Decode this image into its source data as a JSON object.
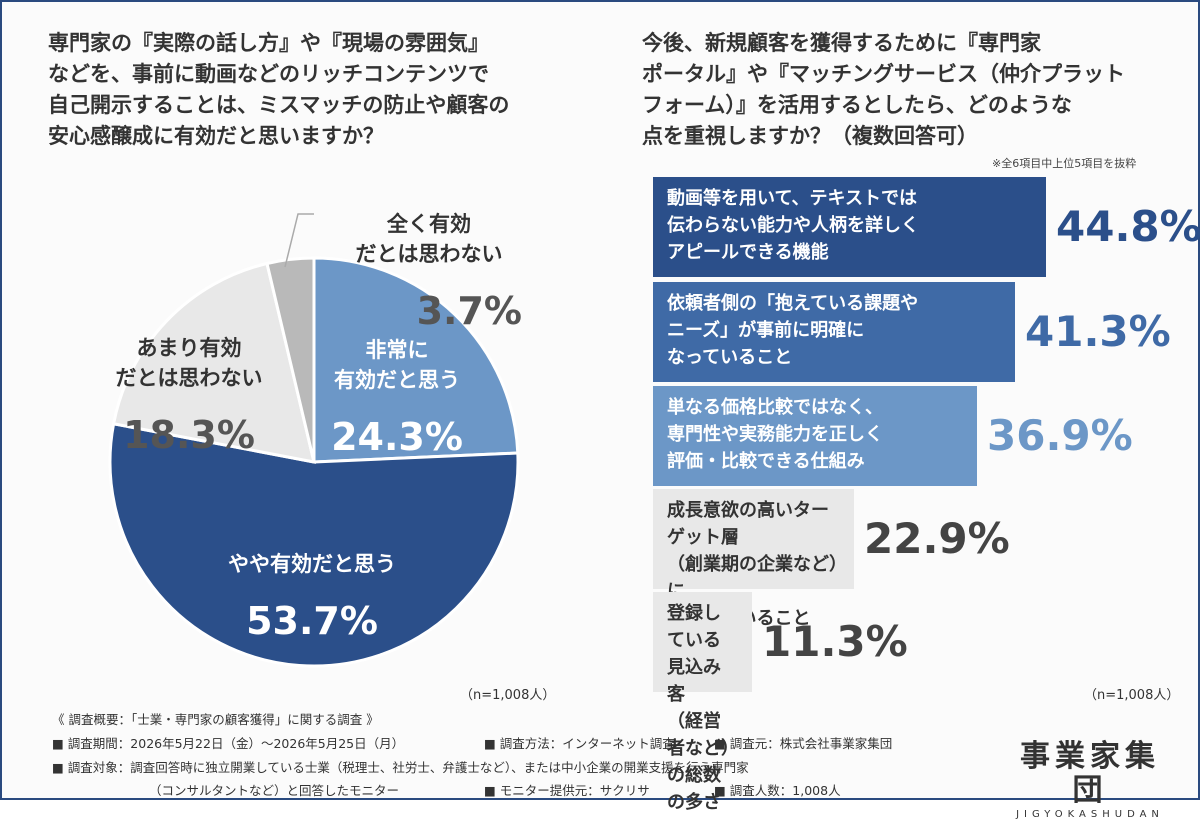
{
  "left": {
    "question": "専門家の『実際の話し方』や『現場の雰囲気』\nなどを、事前に動画などのリッチコンテンツで\n自己開示することは、ミスマッチの防止や顧客の\n安心感醸成に有効だと思いますか？",
    "n_label": "（n=1,008人）"
  },
  "right": {
    "question": "今後、新規顧客を獲得するために『専門家\nポータル』や『マッチングサービス（仲介プラット\nフォーム）』を活用するとしたら、どのような\n点を重視しますか？（複数回答可）",
    "note": "※全6項目中上位5項目を抜粋",
    "n_label": "（n=1,008人）"
  },
  "chart_data": [
    {
      "type": "pie",
      "slices": [
        {
          "label": "非常に\n有効だと思う",
          "value": 24.3,
          "pct_label": "24.3%",
          "color": "#6c97c7"
        },
        {
          "label": "やや有効だと思う",
          "value": 53.7,
          "pct_label": "53.7%",
          "color": "#2b4f8a"
        },
        {
          "label": "あまり有効\nだとは思わない",
          "value": 18.3,
          "pct_label": "18.3%",
          "color": "#e8e8e8"
        },
        {
          "label": "全く有効\nだとは思わない",
          "value": 3.7,
          "pct_label": "3.7%",
          "color": "#b9b9b9"
        }
      ]
    },
    {
      "type": "bar",
      "orientation": "horizontal",
      "categories": [
        "動画等を用いて、テキストでは\n伝わらない能力や人柄を詳しく\nアピールできる機能",
        "依頼者側の「抱えている課題や\nニーズ」が事前に明確に\nなっていること",
        "単なる価格比較ではなく、\n専門性や実務能力を正しく\n評価・比較できる仕組み",
        "成長意欲の高いターゲット層\n（創業期の企業など）に\n絞られていること",
        "登録している見込み客\n（経営者など）の総数の多さ"
      ],
      "values": [
        44.8,
        41.3,
        36.9,
        22.9,
        11.3
      ],
      "value_labels": [
        "44.8%",
        "41.3%",
        "36.9%",
        "22.9%",
        "11.3%"
      ],
      "colors": [
        "#2b4f8a",
        "#3f6aa6",
        "#6c97c7",
        "#e8e8e8",
        "#e8e8e8"
      ],
      "text_colors": [
        "#ffffff",
        "#ffffff",
        "#ffffff",
        "#333333",
        "#333333"
      ],
      "pct_colors": [
        "#2b4f8a",
        "#3f6aa6",
        "#6c97c7",
        "#444444",
        "#444444"
      ]
    }
  ],
  "footer": {
    "line1": "《 調査概要：「士業・専門家の顧客獲得」に関する調査 》",
    "period": "■ 調査期間：2026年5月22日（金）〜2026年5月25日（月）",
    "method": "■ 調査方法：インターネット調査",
    "source": "■ 調査元：株式会社事業家集団",
    "target1": "■ 調査対象：調査回答時に独立開業している士業（税理士、社労士、弁護士など）、または中小企業の開業支援を行う専門家",
    "target2": "（コンサルタントなど）と回答したモニター",
    "provider": "■ モニター提供元：サクリサ",
    "count": "■ 調査人数：1,008人"
  },
  "logo": {
    "jp": "事業家集団",
    "en": "JIGYOKASHUDAN"
  }
}
